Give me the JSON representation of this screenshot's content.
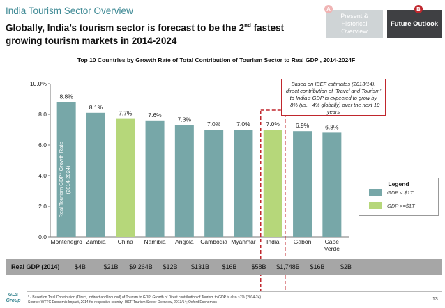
{
  "header": {
    "section_title": "India Tourism Sector Overview",
    "headline_part1": "Globally, India’s tourism sector is forecast to be the 2",
    "headline_sup": "nd",
    "headline_part2": " fastest growing tourism markets in 2014-2024"
  },
  "tabs": [
    {
      "badge": "A",
      "label": "Present & Historical Overview",
      "active": false
    },
    {
      "badge": "B",
      "label": "Future Outlook",
      "active": true
    }
  ],
  "chart_data": {
    "type": "bar",
    "title": "Top 10 Countries by Growth Rate of Total Contribution of Tourism Sector to Real GDP , 2014-2024F",
    "ylabel": "Real Tourism GDP* Growth Rate (2014-2024)",
    "ylim": [
      0,
      10
    ],
    "yticks": [
      "0.0",
      "2.0",
      "4.0",
      "6.0",
      "8.0",
      "10.0%"
    ],
    "categories": [
      "Montenegro",
      "Zambia",
      "China",
      "Namibia",
      "Angola",
      "Cambodia",
      "Myanmar",
      "India",
      "Gabon",
      "Cape Verde"
    ],
    "values": [
      8.8,
      8.1,
      7.7,
      7.6,
      7.3,
      7.0,
      7.0,
      7.0,
      6.9,
      6.8
    ],
    "value_labels": [
      "8.8%",
      "8.1%",
      "7.7%",
      "7.6%",
      "7.3%",
      "7.0%",
      "7.0%",
      "7.0%",
      "6.9%",
      "6.8%"
    ],
    "gdp_group": [
      "low",
      "low",
      "high",
      "low",
      "low",
      "low",
      "low",
      "high",
      "low",
      "low"
    ],
    "highlighted_category": "India",
    "colors": {
      "low": "#77a7a8",
      "high": "#b6d77a",
      "highlight_border": "#c0272d"
    },
    "legend": {
      "title": "Legend",
      "entries": [
        {
          "key": "low",
          "label": "GDP < $1T"
        },
        {
          "key": "high",
          "label": "GDP >=$1T"
        }
      ]
    },
    "callout": "Based on IBEF estimates (2013/14), direct contribution of ‘Travel and Tourism’ to India’s GDP is expected to grow by ~8% (vs. ~4% globally) over the next 10 years"
  },
  "gdp_row": {
    "label": "Real GDP (2014)",
    "values": [
      "$4B",
      "$21B",
      "$9,264B",
      "$12B",
      "$131B",
      "$16B",
      "$58B",
      "$1,748B",
      "$16B",
      "$2B"
    ]
  },
  "footer": {
    "logo": "GLS Group",
    "footnote_line1": "* - Based on Total Contribution (Direct, Indirect and Induced) of Tourism to GDP; Growth of Direct contribution of Tourism to GDP is also ~7% (2014-24)",
    "footnote_line2": "Source: WTTC Economic Impact, 2014 for respective country; IBEF Tourism Sector Overview, 2013/14; Oxford Economics",
    "page_number": "13"
  }
}
